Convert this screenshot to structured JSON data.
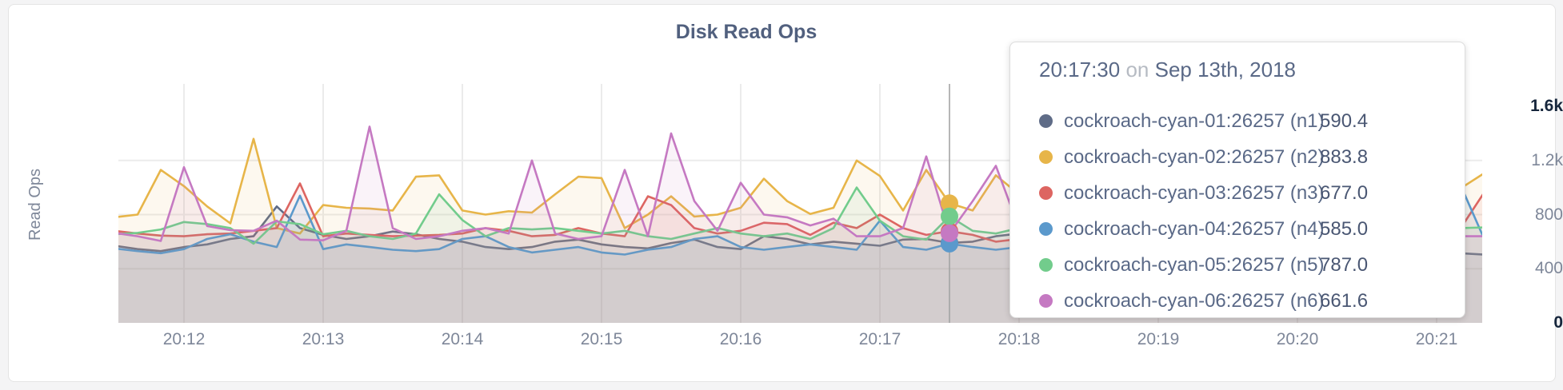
{
  "tooltip": {
    "time": "20:17:30",
    "joiner": "on",
    "date": "Sep 13th, 2018",
    "rows": [
      {
        "name": "cockroach-cyan-01:26257 (n1)",
        "value": "590.4",
        "color": "#5f6c87"
      },
      {
        "name": "cockroach-cyan-02:26257 (n2)",
        "value": "883.8",
        "color": "#e7b549"
      },
      {
        "name": "cockroach-cyan-03:26257 (n3)",
        "value": "677.0",
        "color": "#dd6561"
      },
      {
        "name": "cockroach-cyan-04:26257 (n4)",
        "value": "585.0",
        "color": "#5b99cc"
      },
      {
        "name": "cockroach-cyan-05:26257 (n5)",
        "value": "787.0",
        "color": "#72cc8c"
      },
      {
        "name": "cockroach-cyan-06:26257 (n6)",
        "value": "661.6",
        "color": "#c579c2"
      }
    ]
  },
  "chart_data": {
    "type": "area",
    "title": "Disk Read Ops",
    "ylabel": "Read Ops",
    "ylim": [
      0,
      1600
    ],
    "grid": true,
    "legend_position": "tooltip",
    "x_start_time": "20:11:30",
    "x_interval_sec": 10,
    "x_ticks": [
      "20:12",
      "20:13",
      "20:14",
      "20:15",
      "20:16",
      "20:17",
      "20:18",
      "20:19",
      "20:20",
      "20:21"
    ],
    "y_ticks": [
      {
        "label": "1.6k",
        "value": 1600,
        "emph": true,
        "grid": false
      },
      {
        "label": "1.2k",
        "value": 1200,
        "emph": false,
        "grid": true
      },
      {
        "label": "800",
        "value": 800,
        "emph": false,
        "grid": true
      },
      {
        "label": "400",
        "value": 400,
        "emph": false,
        "grid": true
      },
      {
        "label": "0",
        "value": 0,
        "emph": true,
        "grid": false
      }
    ],
    "highlight": {
      "index": 36,
      "time": "20:17:30",
      "date": "Sep 13th, 2018"
    },
    "series": [
      {
        "name": "cockroach-cyan-01:26257 (n1)",
        "color": "#5f6c87",
        "values": [
          570,
          545,
          530,
          560,
          580,
          620,
          640,
          860,
          700,
          650,
          620,
          640,
          675,
          655,
          620,
          600,
          560,
          545,
          560,
          600,
          615,
          580,
          560,
          550,
          590,
          615,
          560,
          545,
          640,
          620,
          580,
          600,
          585,
          570,
          615,
          620,
          590.4,
          600,
          640,
          660,
          620,
          600,
          580,
          600,
          620,
          640,
          580,
          560,
          600,
          620,
          640,
          600,
          580,
          560,
          575,
          590,
          570,
          540,
          515,
          505
        ]
      },
      {
        "name": "cockroach-cyan-02:26257 (n2)",
        "color": "#e7b549",
        "values": [
          780,
          800,
          1130,
          1010,
          860,
          735,
          1360,
          700,
          660,
          870,
          850,
          845,
          830,
          1080,
          1090,
          830,
          800,
          825,
          815,
          950,
          1080,
          1070,
          700,
          800,
          935,
          785,
          800,
          850,
          1065,
          900,
          805,
          850,
          1200,
          1085,
          830,
          1130,
          883.8,
          830,
          1090,
          950,
          975,
          905,
          870,
          950,
          1005,
          1050,
          980,
          900,
          870,
          950,
          1000,
          980,
          920,
          880,
          940,
          990,
          1020,
          975,
          990,
          1100
        ]
      },
      {
        "name": "cockroach-cyan-03:26257 (n3)",
        "color": "#dd6561",
        "values": [
          680,
          660,
          645,
          640,
          655,
          660,
          680,
          700,
          1030,
          640,
          660,
          650,
          640,
          645,
          650,
          660,
          700,
          680,
          640,
          650,
          700,
          660,
          640,
          935,
          870,
          700,
          660,
          680,
          740,
          730,
          650,
          740,
          700,
          800,
          700,
          650,
          677,
          650,
          600,
          620,
          660,
          680,
          650,
          640,
          660,
          700,
          680,
          650,
          640,
          660,
          700,
          680,
          650,
          640,
          660,
          700,
          680,
          650,
          690,
          950
        ]
      },
      {
        "name": "cockroach-cyan-04:26257 (n4)",
        "color": "#5b99cc",
        "values": [
          550,
          530,
          515,
          545,
          620,
          655,
          600,
          560,
          940,
          545,
          580,
          560,
          540,
          530,
          545,
          620,
          640,
          560,
          520,
          540,
          560,
          520,
          505,
          540,
          560,
          620,
          640,
          560,
          540,
          560,
          580,
          560,
          540,
          755,
          560,
          540,
          585,
          560,
          540,
          560,
          580,
          560,
          540,
          560,
          580,
          560,
          540,
          560,
          580,
          560,
          540,
          560,
          580,
          560,
          540,
          560,
          580,
          640,
          1030,
          640
        ]
      },
      {
        "name": "cockroach-cyan-05:26257 (n5)",
        "color": "#72cc8c",
        "values": [
          655,
          665,
          690,
          745,
          730,
          700,
          585,
          750,
          730,
          655,
          680,
          640,
          620,
          660,
          950,
          760,
          640,
          700,
          690,
          700,
          680,
          660,
          680,
          640,
          620,
          660,
          700,
          660,
          640,
          660,
          620,
          700,
          1000,
          755,
          640,
          615,
          787,
          680,
          660,
          700,
          680,
          660,
          640,
          660,
          700,
          680,
          660,
          640,
          660,
          700,
          680,
          660,
          640,
          660,
          700,
          680,
          660,
          640,
          700,
          705
        ]
      },
      {
        "name": "cockroach-cyan-06:26257 (n6)",
        "color": "#c579c2",
        "values": [
          665,
          640,
          605,
          1150,
          715,
          685,
          680,
          755,
          615,
          610,
          680,
          1450,
          700,
          620,
          640,
          680,
          700,
          660,
          1200,
          660,
          620,
          640,
          1130,
          640,
          1400,
          900,
          680,
          1035,
          800,
          780,
          720,
          770,
          640,
          640,
          700,
          1230,
          661.6,
          900,
          1160,
          700,
          640,
          660,
          700,
          660,
          640,
          660,
          700,
          660,
          640,
          660,
          700,
          660,
          640,
          660,
          700,
          660,
          640,
          660,
          640,
          640
        ]
      }
    ]
  }
}
